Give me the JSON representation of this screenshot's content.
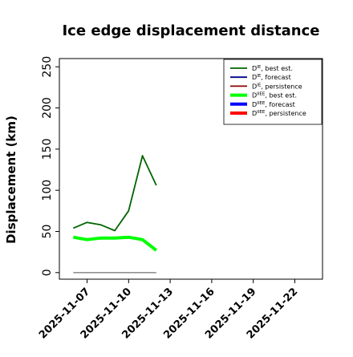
{
  "chart_data": {
    "type": "line",
    "title": "Ice edge displacement distance",
    "ylabel": "Displacement (km)",
    "xlabel": "",
    "xlim": [
      "2025-11-05",
      "2025-11-24"
    ],
    "ylim": [
      -8,
      260
    ],
    "yticks": [
      0,
      50,
      100,
      150,
      200,
      250
    ],
    "xticks": [
      {
        "date": "2025-11-07",
        "label": "2025-11-07",
        "color": "#000000"
      },
      {
        "date": "2025-11-10",
        "label": "2025-11-10",
        "color": "#000000"
      },
      {
        "date": "2025-11-13",
        "label": "2025-11-13",
        "color": "#228B22"
      },
      {
        "date": "2025-11-16",
        "label": "2025-11-16",
        "color": "#000000"
      },
      {
        "date": "2025-11-19",
        "label": "2025-11-19",
        "color": "#000000"
      },
      {
        "date": "2025-11-22",
        "label": "2025-11-22",
        "color": "#000000"
      }
    ],
    "grid": false,
    "legend_position": "top-right",
    "series": [
      {
        "name": "D^IE, best est.",
        "color": "#006400",
        "width": 1.8,
        "x": [
          "2025-11-06",
          "2025-11-07",
          "2025-11-08",
          "2025-11-09",
          "2025-11-10",
          "2025-11-11",
          "2025-11-12"
        ],
        "values": [
          54,
          61,
          58,
          51,
          75,
          142,
          106
        ]
      },
      {
        "name": "D^IE, forecast",
        "color": "#00008B",
        "width": 1.8,
        "x": [],
        "values": []
      },
      {
        "name": "D^IE, persistence",
        "color": "#8B0000",
        "width": 1.8,
        "x": [],
        "values": []
      },
      {
        "name": "D^IIEE, best est.",
        "color": "#00FF00",
        "width": 4,
        "x": [
          "2025-11-06",
          "2025-11-07",
          "2025-11-08",
          "2025-11-09",
          "2025-11-10",
          "2025-11-11",
          "2025-11-12"
        ],
        "values": [
          43,
          40,
          42,
          42,
          43,
          40,
          27
        ]
      },
      {
        "name": "D^IIEE, forecast",
        "color": "#0000FF",
        "width": 4,
        "x": [],
        "values": []
      },
      {
        "name": "D^IIEE, persistence",
        "color": "#FF0000",
        "width": 4,
        "x": [],
        "values": []
      },
      {
        "name": "",
        "color": "#808080",
        "width": 1.3,
        "x": [
          "2025-11-06",
          "2025-11-12"
        ],
        "values": [
          0,
          0
        ]
      }
    ],
    "legend": [
      {
        "base": "D",
        "sup": "IE",
        "text": ", best est.",
        "color": "#006400",
        "width": 1.8
      },
      {
        "base": "D",
        "sup": "IE",
        "text": ", forecast",
        "color": "#00008B",
        "width": 1.8
      },
      {
        "base": "D",
        "sup": "IE",
        "text": ", persistence",
        "color": "#8B0000",
        "width": 1.8
      },
      {
        "base": "D",
        "sup": "IIEE",
        "text": ", best est.",
        "color": "#00FF00",
        "width": 4
      },
      {
        "base": "D",
        "sup": "IIEE",
        "text": ", forecast",
        "color": "#0000FF",
        "width": 4
      },
      {
        "base": "D",
        "sup": "IIEE",
        "text": ", persistence",
        "color": "#FF0000",
        "width": 4
      }
    ]
  }
}
